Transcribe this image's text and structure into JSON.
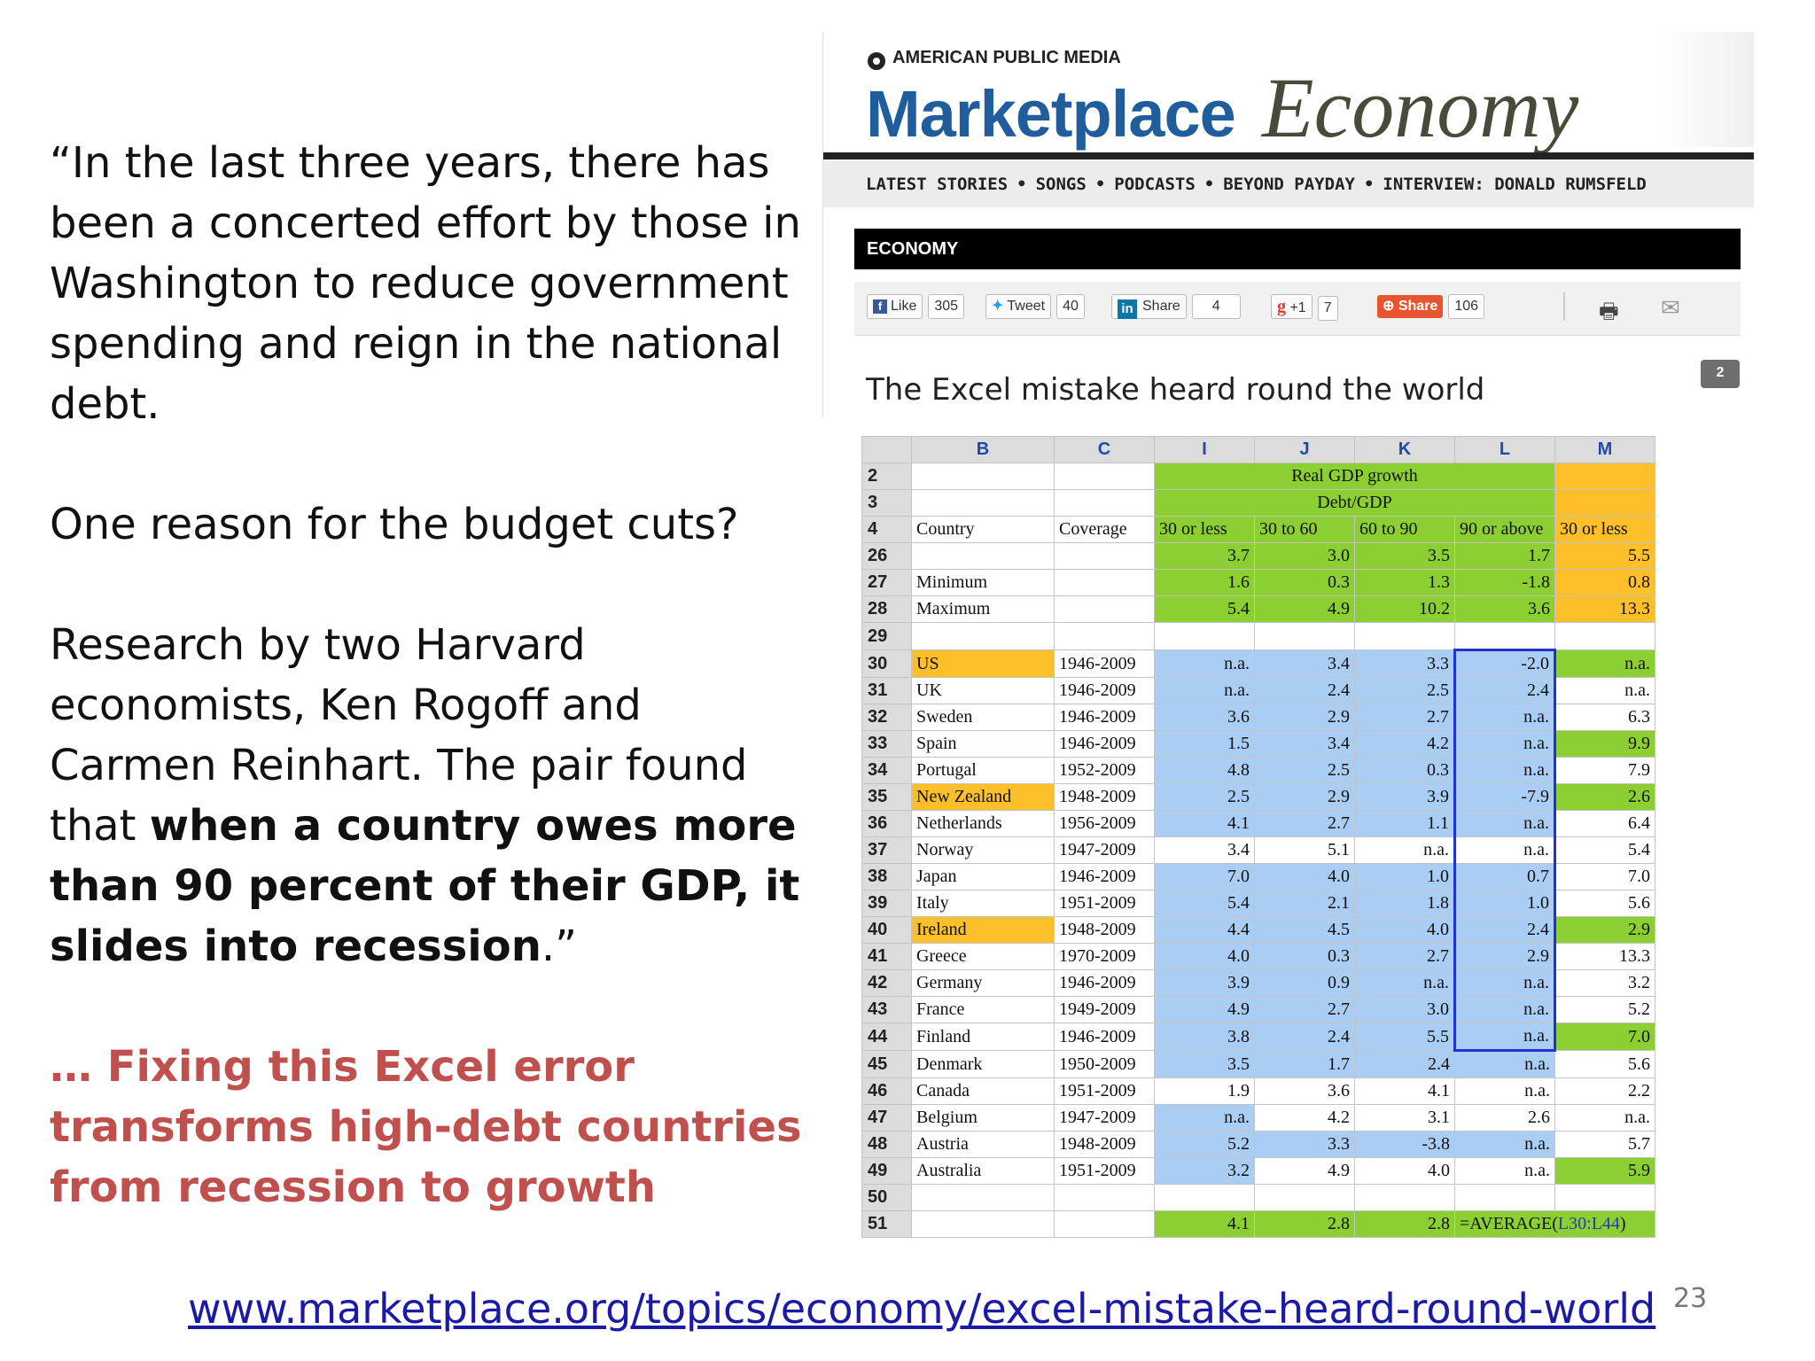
{
  "slide": {
    "quote_p1": "“In the last three years, there has been a concerted effort by those in Washington to reduce government spending and reign in the national debt.",
    "quote_p2": "One reason for the budget cuts?",
    "quote_p3_a": "Research by two Harvard economists, Ken Rogoff and Carmen Reinhart. The pair found that ",
    "quote_p3_bold": "when a country owes more than 90 percent of their GDP, it slides into recession",
    "quote_p3_end": ".”",
    "red_text": "… Fixing this Excel error transforms high-debt countries from recession to growth",
    "url": "www.marketplace.org/topics/economy/excel-mistake-heard-round-world",
    "page_number": "23"
  },
  "web": {
    "network": "AMERICAN PUBLIC MEDIA",
    "brand": "Marketplace",
    "section_title": "Economy",
    "nav": [
      "LATEST STORIES",
      "SONGS",
      "PODCASTS",
      "BEYOND PAYDAY",
      "INTERVIEW: DONALD RUMSFELD"
    ],
    "nav_sep": "•",
    "section_bar": "ECONOMY",
    "social": {
      "like": "Like",
      "like_count": "305",
      "tweet": "Tweet",
      "tweet_count": "40",
      "share": "Share",
      "share_count": "4",
      "gplus": "+1",
      "gplus_count": "7",
      "addshare": "Share",
      "addshare_count": "106"
    },
    "headline": "The Excel mistake heard round the world",
    "comment_count": "2"
  },
  "sheet": {
    "col_headers": [
      "B",
      "C",
      "I",
      "J",
      "K",
      "L",
      "M"
    ],
    "header_group_top": "Real GDP growth",
    "header_group_sub": "Debt/GDP",
    "row_labels": {
      "country": "Country",
      "coverage": "Coverage",
      "bins": [
        "30 or less",
        "30 to 60",
        "60 to 90",
        "90 or above",
        "30 or less"
      ]
    },
    "summary": [
      {
        "row": "26",
        "label": "",
        "values": [
          "3.7",
          "3.0",
          "3.5",
          "1.7",
          "5.5"
        ]
      },
      {
        "row": "27",
        "label": "Minimum",
        "values": [
          "1.6",
          "0.3",
          "1.3",
          "-1.8",
          "0.8"
        ]
      },
      {
        "row": "28",
        "label": "Maximum",
        "values": [
          "5.4",
          "4.9",
          "10.2",
          "3.6",
          "13.3"
        ]
      }
    ],
    "countries": [
      {
        "row": "30",
        "country": "US",
        "coverage": "1946-2009",
        "values": [
          "n.a.",
          "3.4",
          "3.3",
          "-2.0",
          "n.a."
        ]
      },
      {
        "row": "31",
        "country": "UK",
        "coverage": "1946-2009",
        "values": [
          "n.a.",
          "2.4",
          "2.5",
          "2.4",
          "n.a."
        ]
      },
      {
        "row": "32",
        "country": "Sweden",
        "coverage": "1946-2009",
        "values": [
          "3.6",
          "2.9",
          "2.7",
          "n.a.",
          "6.3"
        ]
      },
      {
        "row": "33",
        "country": "Spain",
        "coverage": "1946-2009",
        "values": [
          "1.5",
          "3.4",
          "4.2",
          "n.a.",
          "9.9"
        ]
      },
      {
        "row": "34",
        "country": "Portugal",
        "coverage": "1952-2009",
        "values": [
          "4.8",
          "2.5",
          "0.3",
          "n.a.",
          "7.9"
        ]
      },
      {
        "row": "35",
        "country": "New Zealand",
        "coverage": "1948-2009",
        "values": [
          "2.5",
          "2.9",
          "3.9",
          "-7.9",
          "2.6"
        ]
      },
      {
        "row": "36",
        "country": "Netherlands",
        "coverage": "1956-2009",
        "values": [
          "4.1",
          "2.7",
          "1.1",
          "n.a.",
          "6.4"
        ]
      },
      {
        "row": "37",
        "country": "Norway",
        "coverage": "1947-2009",
        "values": [
          "3.4",
          "5.1",
          "n.a.",
          "n.a.",
          "5.4"
        ]
      },
      {
        "row": "38",
        "country": "Japan",
        "coverage": "1946-2009",
        "values": [
          "7.0",
          "4.0",
          "1.0",
          "0.7",
          "7.0"
        ]
      },
      {
        "row": "39",
        "country": "Italy",
        "coverage": "1951-2009",
        "values": [
          "5.4",
          "2.1",
          "1.8",
          "1.0",
          "5.6"
        ]
      },
      {
        "row": "40",
        "country": "Ireland",
        "coverage": "1948-2009",
        "values": [
          "4.4",
          "4.5",
          "4.0",
          "2.4",
          "2.9"
        ]
      },
      {
        "row": "41",
        "country": "Greece",
        "coverage": "1970-2009",
        "values": [
          "4.0",
          "0.3",
          "2.7",
          "2.9",
          "13.3"
        ]
      },
      {
        "row": "42",
        "country": "Germany",
        "coverage": "1946-2009",
        "values": [
          "3.9",
          "0.9",
          "n.a.",
          "n.a.",
          "3.2"
        ]
      },
      {
        "row": "43",
        "country": "France",
        "coverage": "1949-2009",
        "values": [
          "4.9",
          "2.7",
          "3.0",
          "n.a.",
          "5.2"
        ]
      },
      {
        "row": "44",
        "country": "Finland",
        "coverage": "1946-2009",
        "values": [
          "3.8",
          "2.4",
          "5.5",
          "n.a.",
          "7.0"
        ]
      },
      {
        "row": "45",
        "country": "Denmark",
        "coverage": "1950-2009",
        "values": [
          "3.5",
          "1.7",
          "2.4",
          "n.a.",
          "5.6"
        ]
      },
      {
        "row": "46",
        "country": "Canada",
        "coverage": "1951-2009",
        "values": [
          "1.9",
          "3.6",
          "4.1",
          "n.a.",
          "2.2"
        ]
      },
      {
        "row": "47",
        "country": "Belgium",
        "coverage": "1947-2009",
        "values": [
          "n.a.",
          "4.2",
          "3.1",
          "2.6",
          "n.a."
        ]
      },
      {
        "row": "48",
        "country": "Austria",
        "coverage": "1948-2009",
        "values": [
          "5.2",
          "3.3",
          "-3.8",
          "n.a.",
          "5.7"
        ]
      },
      {
        "row": "49",
        "country": "Australia",
        "coverage": "1951-2009",
        "values": [
          "3.2",
          "4.9",
          "4.0",
          "n.a.",
          "5.9"
        ]
      }
    ],
    "average_row": {
      "row": "51",
      "values": [
        "4.1",
        "2.8",
        "2.8"
      ],
      "formula": "=AVERAGE(",
      "formula_ref": "L30:L44",
      "formula_end": ")"
    },
    "blank_rows": [
      "2",
      "3",
      "4",
      "29",
      "50"
    ],
    "colors": {
      "green": "#8ccf32",
      "orange": "#fdc02a",
      "blue": "#a9cdf3",
      "selection": "#2233cc"
    }
  }
}
